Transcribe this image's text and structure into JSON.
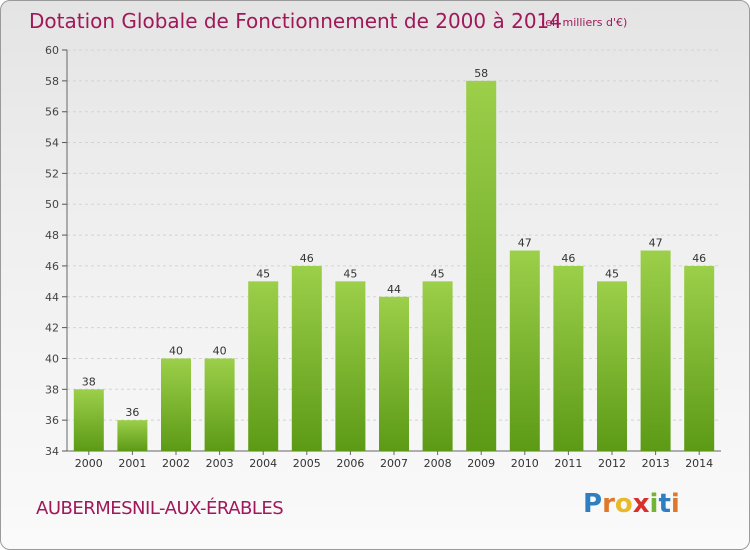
{
  "header": {
    "title": "Dotation Globale de Fonctionnement de 2000 à 2014",
    "unit_note": "(en milliers d'€)"
  },
  "footer": {
    "commune": "AUBERMESNIL-AUX-ÉRABLES",
    "logo_text": "Proxiti"
  },
  "colors": {
    "title": "#a0185a",
    "bar_top": "#9ccf4a",
    "bar_bottom": "#5c9a16",
    "grid": "#d4d4d4"
  },
  "chart_data": {
    "type": "bar",
    "title": "Dotation Globale de Fonctionnement de 2000 à 2014",
    "subtitle": "(en milliers d'€)",
    "xlabel": "",
    "ylabel": "",
    "categories": [
      "2000",
      "2001",
      "2002",
      "2003",
      "2004",
      "2005",
      "2006",
      "2007",
      "2008",
      "2009",
      "2010",
      "2011",
      "2012",
      "2013",
      "2014"
    ],
    "values": [
      38,
      36,
      40,
      40,
      45,
      46,
      45,
      44,
      45,
      58,
      47,
      46,
      45,
      47,
      46
    ],
    "ylim": [
      34,
      60
    ],
    "yticks": [
      34,
      36,
      38,
      40,
      42,
      44,
      46,
      48,
      50,
      52,
      54,
      56,
      58,
      60
    ],
    "grid": true,
    "legend": "none"
  }
}
